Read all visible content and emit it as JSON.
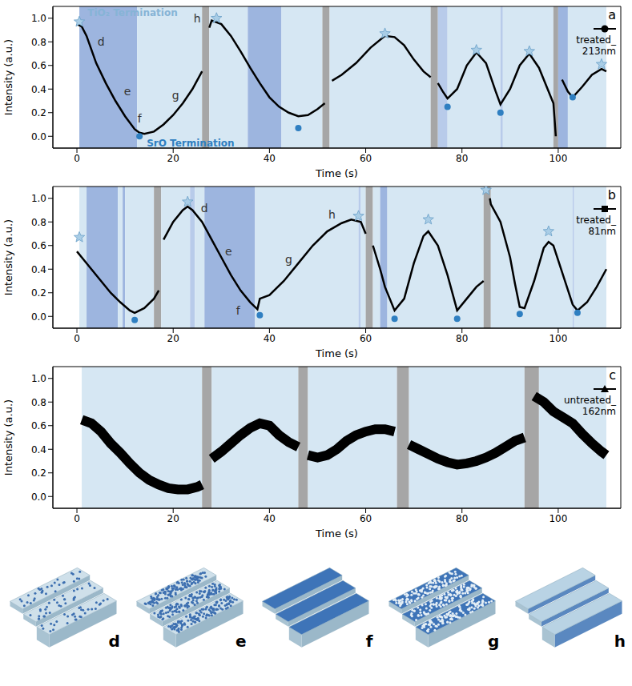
{
  "chart_data": [
    {
      "type": "line",
      "panel_label": "a",
      "xlabel": "Time (s)",
      "ylabel": "Intensity (a.u.)",
      "xlim": [
        -5,
        113
      ],
      "ylim": [
        -0.1,
        1.1
      ],
      "xticks": [
        0,
        20,
        40,
        60,
        80,
        100
      ],
      "yticks": [
        {
          "value": 0,
          "label": "0.0"
        },
        0.2,
        0.4,
        0.6,
        0.8,
        {
          "value": 1,
          "label": "1.0"
        }
      ],
      "legend": "upper right",
      "x": [
        0,
        1,
        2,
        4,
        6,
        8,
        10,
        12,
        13,
        14,
        16,
        18,
        20,
        22,
        24,
        26,
        26.8,
        27.5,
        28,
        30,
        32,
        34,
        36,
        38,
        40,
        42,
        44,
        46,
        48,
        50,
        51.5,
        52.2,
        53,
        55,
        58,
        61,
        64,
        66,
        68,
        70,
        72,
        73.5,
        74.2,
        75,
        76,
        77,
        79,
        81,
        83,
        85,
        87,
        88,
        90,
        92,
        94,
        96,
        98,
        99,
        99.5,
        100.2,
        100.8,
        102,
        103,
        105,
        107,
        109,
        110
      ],
      "series": [
        {
          "name": "treated_213nm",
          "color": "#000000",
          "marker": "circle",
          "line_style": "solid",
          "values": [
            0.95,
            0.93,
            0.85,
            0.62,
            0.45,
            0.3,
            0.17,
            0.06,
            0.03,
            0.02,
            0.04,
            0.1,
            0.18,
            0.28,
            0.4,
            0.55,
            null,
            0.92,
            0.98,
            0.95,
            0.85,
            0.72,
            0.58,
            0.45,
            0.33,
            0.25,
            0.2,
            0.17,
            0.18,
            0.23,
            0.28,
            null,
            0.47,
            0.52,
            0.62,
            0.75,
            0.85,
            0.84,
            0.77,
            0.65,
            0.55,
            0.5,
            null,
            0.45,
            0.38,
            0.32,
            0.4,
            0.6,
            0.71,
            0.62,
            0.38,
            0.27,
            0.4,
            0.6,
            0.7,
            0.58,
            0.38,
            0.28,
            0.0,
            null,
            0.48,
            0.38,
            0.33,
            0.42,
            0.52,
            0.57,
            0.55
          ]
        }
      ],
      "TiO2_termination": {
        "marker": "star",
        "color": "#a9cde6",
        "x": [
          0.5,
          29,
          64,
          83,
          94,
          109
        ],
        "y": [
          0.97,
          1.0,
          0.87,
          0.73,
          0.72,
          0.61
        ]
      },
      "SrO_termination": {
        "marker": "circle",
        "color": "#2f7fc1",
        "x": [
          13,
          46,
          77,
          88,
          103
        ],
        "y": [
          0.0,
          0.07,
          0.25,
          0.2,
          0.33
        ]
      },
      "annotations": [
        {
          "text": "TiO₂ Termination",
          "x": 2.2,
          "y": 1.05,
          "color": "#86b4d6"
        },
        {
          "text": "SrO Termination",
          "x": 14.5,
          "y": -0.06,
          "color": "#2f7fc1"
        },
        {
          "text": "d",
          "x": 5,
          "y": 0.8,
          "color": "#333333"
        },
        {
          "text": "e",
          "x": 10.5,
          "y": 0.38,
          "color": "#333333"
        },
        {
          "text": "f",
          "x": 13,
          "y": 0.15,
          "color": "#333333"
        },
        {
          "text": "g",
          "x": 20.5,
          "y": 0.35,
          "color": "#333333"
        },
        {
          "text": "h",
          "x": 25,
          "y": 1.0,
          "color": "#333333"
        }
      ],
      "shaded_regions": [
        {
          "x0": 0.5,
          "x1": 12.5,
          "color": "#9db5df"
        },
        {
          "x0": 12.5,
          "x1": 26,
          "color": "#d6e7f3"
        },
        {
          "x0": 26,
          "x1": 27.5,
          "color": "#a6a6a6"
        },
        {
          "x0": 27.5,
          "x1": 35.5,
          "color": "#d6e7f3"
        },
        {
          "x0": 35.5,
          "x1": 42.5,
          "color": "#9db5df"
        },
        {
          "x0": 42.5,
          "x1": 51,
          "color": "#d6e7f3"
        },
        {
          "x0": 51,
          "x1": 52.5,
          "color": "#a6a6a6"
        },
        {
          "x0": 52.5,
          "x1": 73.5,
          "color": "#d6e7f3"
        },
        {
          "x0": 73.5,
          "x1": 75,
          "color": "#a6a6a6"
        },
        {
          "x0": 75,
          "x1": 77,
          "color": "#b8cbea"
        },
        {
          "x0": 77,
          "x1": 88,
          "color": "#d6e7f3"
        },
        {
          "x0": 88,
          "x1": 88.5,
          "color": "#b8cbea"
        },
        {
          "x0": 88.5,
          "x1": 99,
          "color": "#d6e7f3"
        },
        {
          "x0": 99,
          "x1": 100,
          "color": "#a6a6a6"
        },
        {
          "x0": 100,
          "x1": 102,
          "color": "#9db5df"
        },
        {
          "x0": 102,
          "x1": 110,
          "color": "#d6e7f3"
        }
      ]
    },
    {
      "type": "line",
      "panel_label": "b",
      "xlabel": "Time (s)",
      "ylabel": "Intensity (a.u.)",
      "xlim": [
        -5,
        113
      ],
      "ylim": [
        -0.1,
        1.1
      ],
      "xticks": [
        0,
        20,
        40,
        60,
        80,
        100
      ],
      "yticks": [
        {
          "value": 0,
          "label": "0.0"
        },
        0.2,
        0.4,
        0.6,
        0.8,
        {
          "value": 1,
          "label": "1.0"
        }
      ],
      "legend": "upper right",
      "x": [
        0,
        1,
        3,
        5,
        7,
        9,
        11,
        12,
        14,
        16,
        17,
        17.5,
        18,
        20,
        22,
        23,
        24,
        26,
        28,
        30,
        32,
        34,
        36,
        37.5,
        38,
        40,
        43,
        46,
        49,
        52,
        55,
        57,
        59,
        60,
        60.8,
        61.5,
        63,
        64,
        66,
        68,
        70,
        72,
        73,
        75,
        77,
        79,
        81,
        83,
        84.5,
        85.2,
        85.8,
        86,
        88,
        90,
        91,
        92,
        93,
        95,
        97,
        98,
        99,
        101,
        103,
        104,
        106,
        108,
        110
      ],
      "series": [
        {
          "name": "treated_81nm",
          "color": "#000000",
          "marker": "square",
          "line_style": "solid",
          "values": [
            0.55,
            0.5,
            0.4,
            0.3,
            0.2,
            0.12,
            0.05,
            0.03,
            0.07,
            0.15,
            0.22,
            null,
            0.65,
            0.8,
            0.9,
            0.93,
            0.9,
            0.8,
            0.65,
            0.5,
            0.35,
            0.22,
            0.12,
            0.06,
            0.15,
            0.18,
            0.3,
            0.45,
            0.6,
            0.72,
            0.79,
            0.82,
            0.8,
            0.7,
            null,
            0.6,
            0.4,
            0.25,
            0.05,
            0.15,
            0.45,
            0.68,
            0.72,
            0.6,
            0.35,
            0.05,
            0.15,
            0.25,
            0.3,
            null,
            1.0,
            0.95,
            0.8,
            0.5,
            0.28,
            0.08,
            0.07,
            0.3,
            0.58,
            0.63,
            0.6,
            0.35,
            0.1,
            0.05,
            0.12,
            0.25,
            0.4
          ]
        }
      ],
      "TiO2_termination": {
        "marker": "star",
        "color": "#a9cde6",
        "x": [
          0.5,
          23,
          58.5,
          73,
          85,
          98
        ],
        "y": [
          0.67,
          0.97,
          0.85,
          0.82,
          1.07,
          0.72
        ]
      },
      "SrO_termination": {
        "marker": "circle",
        "color": "#2f7fc1",
        "x": [
          12,
          38,
          66,
          79,
          92,
          104
        ],
        "y": [
          -0.03,
          0.01,
          -0.02,
          -0.02,
          0.02,
          0.03
        ]
      },
      "annotations": [
        {
          "text": "d",
          "x": 26.5,
          "y": 0.92,
          "color": "#333333"
        },
        {
          "text": "e",
          "x": 31.5,
          "y": 0.55,
          "color": "#333333"
        },
        {
          "text": "f",
          "x": 33.5,
          "y": 0.05,
          "color": "#333333"
        },
        {
          "text": "g",
          "x": 44,
          "y": 0.48,
          "color": "#333333"
        },
        {
          "text": "h",
          "x": 53,
          "y": 0.86,
          "color": "#333333"
        }
      ],
      "shaded_regions": [
        {
          "x0": 0.5,
          "x1": 2,
          "color": "#d6e7f3"
        },
        {
          "x0": 2,
          "x1": 8.5,
          "color": "#9db5df"
        },
        {
          "x0": 8.5,
          "x1": 9.5,
          "color": "#d6e7f3"
        },
        {
          "x0": 9.5,
          "x1": 10,
          "color": "#9db5df"
        },
        {
          "x0": 10,
          "x1": 16,
          "color": "#d6e7f3"
        },
        {
          "x0": 16,
          "x1": 17.5,
          "color": "#a6a6a6"
        },
        {
          "x0": 17.5,
          "x1": 23.5,
          "color": "#d6e7f3"
        },
        {
          "x0": 23.5,
          "x1": 24.5,
          "color": "#b8cbea"
        },
        {
          "x0": 24.5,
          "x1": 26.5,
          "color": "#d6e7f3"
        },
        {
          "x0": 26.5,
          "x1": 37,
          "color": "#9db5df"
        },
        {
          "x0": 37,
          "x1": 58.5,
          "color": "#d6e7f3"
        },
        {
          "x0": 58.5,
          "x1": 59,
          "color": "#b8cbea"
        },
        {
          "x0": 59,
          "x1": 60,
          "color": "#d6e7f3"
        },
        {
          "x0": 60,
          "x1": 61.5,
          "color": "#a6a6a6"
        },
        {
          "x0": 61.5,
          "x1": 63,
          "color": "#d6e7f3"
        },
        {
          "x0": 63,
          "x1": 64.5,
          "color": "#9db5df"
        },
        {
          "x0": 64.5,
          "x1": 84.5,
          "color": "#d6e7f3"
        },
        {
          "x0": 84.5,
          "x1": 86,
          "color": "#a6a6a6"
        },
        {
          "x0": 86,
          "x1": 103,
          "color": "#d6e7f3"
        },
        {
          "x0": 103,
          "x1": 103.3,
          "color": "#b8cbea"
        },
        {
          "x0": 103.3,
          "x1": 110,
          "color": "#d6e7f3"
        }
      ]
    },
    {
      "type": "line",
      "panel_label": "c",
      "xlabel": "Time (s)",
      "ylabel": "Intensity (a.u.)",
      "xlim": [
        -5,
        113
      ],
      "ylim": [
        -0.1,
        1.1
      ],
      "xticks": [
        0,
        20,
        40,
        60,
        80,
        100
      ],
      "yticks": [
        {
          "value": 0,
          "label": "0.0"
        },
        0.2,
        0.4,
        0.6,
        0.8,
        {
          "value": 1,
          "label": "1.0"
        }
      ],
      "legend": "upper right",
      "x": [
        1,
        3,
        5,
        7,
        9,
        11,
        13,
        15,
        17,
        19,
        21,
        23,
        25,
        26,
        27,
        28,
        30,
        32,
        34,
        36,
        38,
        40,
        42,
        44,
        46,
        47,
        48,
        50,
        52,
        54,
        56,
        58,
        60,
        62,
        64,
        66,
        67.5,
        69,
        71,
        73,
        75,
        77,
        79,
        81,
        83,
        85,
        87,
        89,
        91,
        93,
        94.5,
        95,
        97,
        99,
        101,
        103,
        105,
        107,
        109,
        110
      ],
      "series": [
        {
          "name": "untreated_162nm",
          "color": "#000000",
          "marker": "triangle",
          "line_style": "band",
          "values": [
            0.65,
            0.62,
            0.55,
            0.45,
            0.37,
            0.28,
            0.2,
            0.14,
            0.1,
            0.07,
            0.06,
            0.06,
            0.08,
            0.1,
            null,
            0.32,
            0.38,
            0.45,
            0.52,
            0.58,
            0.62,
            0.6,
            0.52,
            0.46,
            0.42,
            null,
            0.35,
            0.33,
            0.35,
            0.4,
            0.47,
            0.52,
            0.55,
            0.57,
            0.57,
            0.55,
            null,
            0.44,
            0.4,
            0.36,
            0.32,
            0.29,
            0.27,
            0.28,
            0.3,
            0.33,
            0.37,
            0.42,
            0.47,
            0.5,
            null,
            0.85,
            0.8,
            0.72,
            0.67,
            0.62,
            0.53,
            0.45,
            0.38,
            0.35
          ]
        }
      ],
      "TiO2_termination": {
        "marker": "star",
        "color": "#a9cde6",
        "x": [],
        "y": []
      },
      "SrO_termination": {
        "marker": "circle",
        "color": "#2f7fc1",
        "x": [],
        "y": []
      },
      "annotations": [],
      "shaded_regions": [
        {
          "x0": 1,
          "x1": 26,
          "color": "#d6e7f3"
        },
        {
          "x0": 26,
          "x1": 28,
          "color": "#a6a6a6"
        },
        {
          "x0": 28,
          "x1": 46,
          "color": "#d6e7f3"
        },
        {
          "x0": 46,
          "x1": 48,
          "color": "#a6a6a6"
        },
        {
          "x0": 48,
          "x1": 66.5,
          "color": "#d6e7f3"
        },
        {
          "x0": 66.5,
          "x1": 69,
          "color": "#a6a6a6"
        },
        {
          "x0": 69,
          "x1": 93,
          "color": "#d6e7f3"
        },
        {
          "x0": 93,
          "x1": 96,
          "color": "#a6a6a6"
        },
        {
          "x0": 96,
          "x1": 110,
          "color": "#d6e7f3"
        }
      ]
    }
  ],
  "schematic": {
    "panels": [
      "d",
      "e",
      "f",
      "g",
      "h"
    ]
  }
}
